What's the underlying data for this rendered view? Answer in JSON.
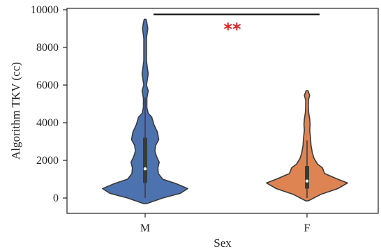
{
  "chart_data": {
    "type": "violin",
    "xlabel": "Sex",
    "ylabel": "Algorithm TKV (cc)",
    "categories": [
      "M",
      "F"
    ],
    "yticks": [
      0,
      2000,
      4000,
      6000,
      8000,
      10000
    ],
    "ylim": [
      -500,
      10000
    ],
    "grid": false,
    "legend": false,
    "significance": {
      "label": "**",
      "between": [
        "M",
        "F"
      ],
      "y": 9750,
      "color": "#d62728"
    },
    "series": [
      {
        "category": "M",
        "color": "#4c72b0",
        "min": -300,
        "max": 9500,
        "q1": 800,
        "median": 1550,
        "q3": 3200,
        "density": [
          [
            -300,
            0.03
          ],
          [
            0,
            0.4
          ],
          [
            250,
            0.8
          ],
          [
            500,
            0.97
          ],
          [
            750,
            0.72
          ],
          [
            1000,
            0.4
          ],
          [
            1300,
            0.3
          ],
          [
            1600,
            0.29
          ],
          [
            1900,
            0.32
          ],
          [
            2200,
            0.26
          ],
          [
            2500,
            0.22
          ],
          [
            2800,
            0.24
          ],
          [
            3100,
            0.31
          ],
          [
            3500,
            0.28
          ],
          [
            3900,
            0.2
          ],
          [
            4300,
            0.15
          ],
          [
            4500,
            0.07
          ],
          [
            4800,
            0.04
          ],
          [
            5300,
            0.04
          ],
          [
            5700,
            0.07
          ],
          [
            6000,
            0.03
          ],
          [
            6300,
            0.05
          ],
          [
            6600,
            0.07
          ],
          [
            6900,
            0.05
          ],
          [
            7300,
            0.03
          ],
          [
            7800,
            0.03
          ],
          [
            8500,
            0.03
          ],
          [
            9000,
            0.06
          ],
          [
            9300,
            0.04
          ],
          [
            9500,
            0.02
          ]
        ]
      },
      {
        "category": "F",
        "color": "#dd8452",
        "min": -150,
        "max": 5700,
        "q1": 500,
        "median": 900,
        "q3": 1700,
        "density": [
          [
            -150,
            0.03
          ],
          [
            200,
            0.32
          ],
          [
            500,
            0.7
          ],
          [
            800,
            0.92
          ],
          [
            1000,
            0.7
          ],
          [
            1300,
            0.4
          ],
          [
            1600,
            0.35
          ],
          [
            1800,
            0.24
          ],
          [
            2100,
            0.16
          ],
          [
            2400,
            0.12
          ],
          [
            2800,
            0.09
          ],
          [
            3200,
            0.08
          ],
          [
            3600,
            0.06
          ],
          [
            3900,
            0.07
          ],
          [
            4200,
            0.06
          ],
          [
            4500,
            0.04
          ],
          [
            4800,
            0.03
          ],
          [
            5200,
            0.03
          ],
          [
            5450,
            0.06
          ],
          [
            5700,
            0.02
          ]
        ]
      }
    ]
  }
}
